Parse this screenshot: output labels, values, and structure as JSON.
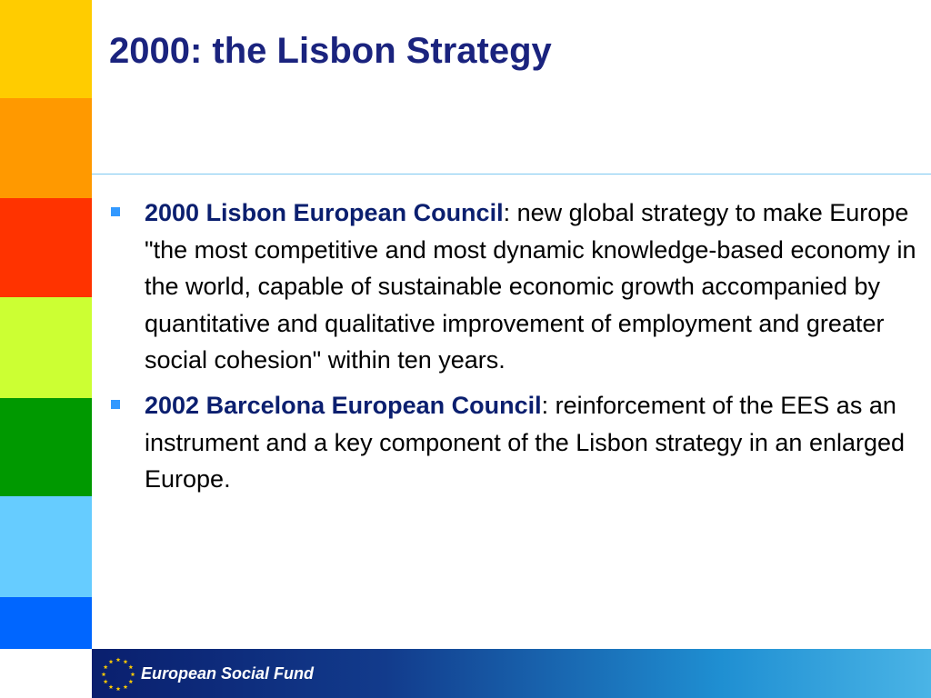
{
  "slide": {
    "title": "2000: the Lisbon Strategy",
    "stripe_colors": [
      "#ffcc00",
      "#ff9900",
      "#ff3300",
      "#ccff33",
      "#009900",
      "#66ccff",
      "#0066ff"
    ],
    "accent_color": "#1a237e",
    "bullet_color": "#3399ff",
    "bullets": [
      {
        "bold": "2000 Lisbon European Council",
        "text": ": new global strategy to make Europe \"the most competitive and most dynamic knowledge-based economy in the world, capable of sustainable economic growth accompanied by quantitative and qualitative improvement of employment and greater social cohesion\" within ten years."
      },
      {
        "bold": "2002 Barcelona European Council",
        "text": ": reinforcement of the EES as an instrument and a key component of the Lisbon strategy in an enlarged Europe."
      }
    ]
  },
  "footer": {
    "label": "European Social Fund",
    "emblem": "eu-stars-icon",
    "emblem_color": "#ffcc00"
  }
}
